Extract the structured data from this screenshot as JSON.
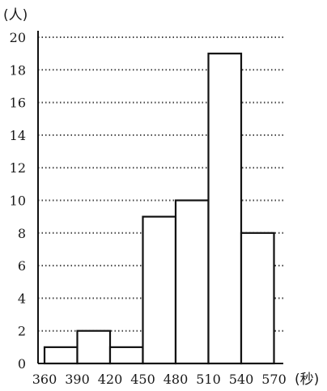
{
  "chart_data": {
    "type": "bar",
    "bins": [
      {
        "from": 360,
        "to": 390,
        "value": 1
      },
      {
        "from": 390,
        "to": 420,
        "value": 2
      },
      {
        "from": 420,
        "to": 450,
        "value": 1
      },
      {
        "from": 450,
        "to": 480,
        "value": 9
      },
      {
        "from": 480,
        "to": 510,
        "value": 10
      },
      {
        "from": 510,
        "to": 540,
        "value": 19
      },
      {
        "from": 540,
        "to": 570,
        "value": 8
      }
    ],
    "x_ticks": [
      "360",
      "390",
      "420",
      "450",
      "480",
      "510",
      "540",
      "570"
    ],
    "y_ticks": [
      "0",
      "2",
      "4",
      "6",
      "8",
      "10",
      "12",
      "14",
      "16",
      "18",
      "20"
    ],
    "xunit": "(秒)",
    "yunit": "(人)",
    "ylim": [
      0,
      20
    ],
    "grid": true,
    "grid_style": "dotted horizontal"
  }
}
